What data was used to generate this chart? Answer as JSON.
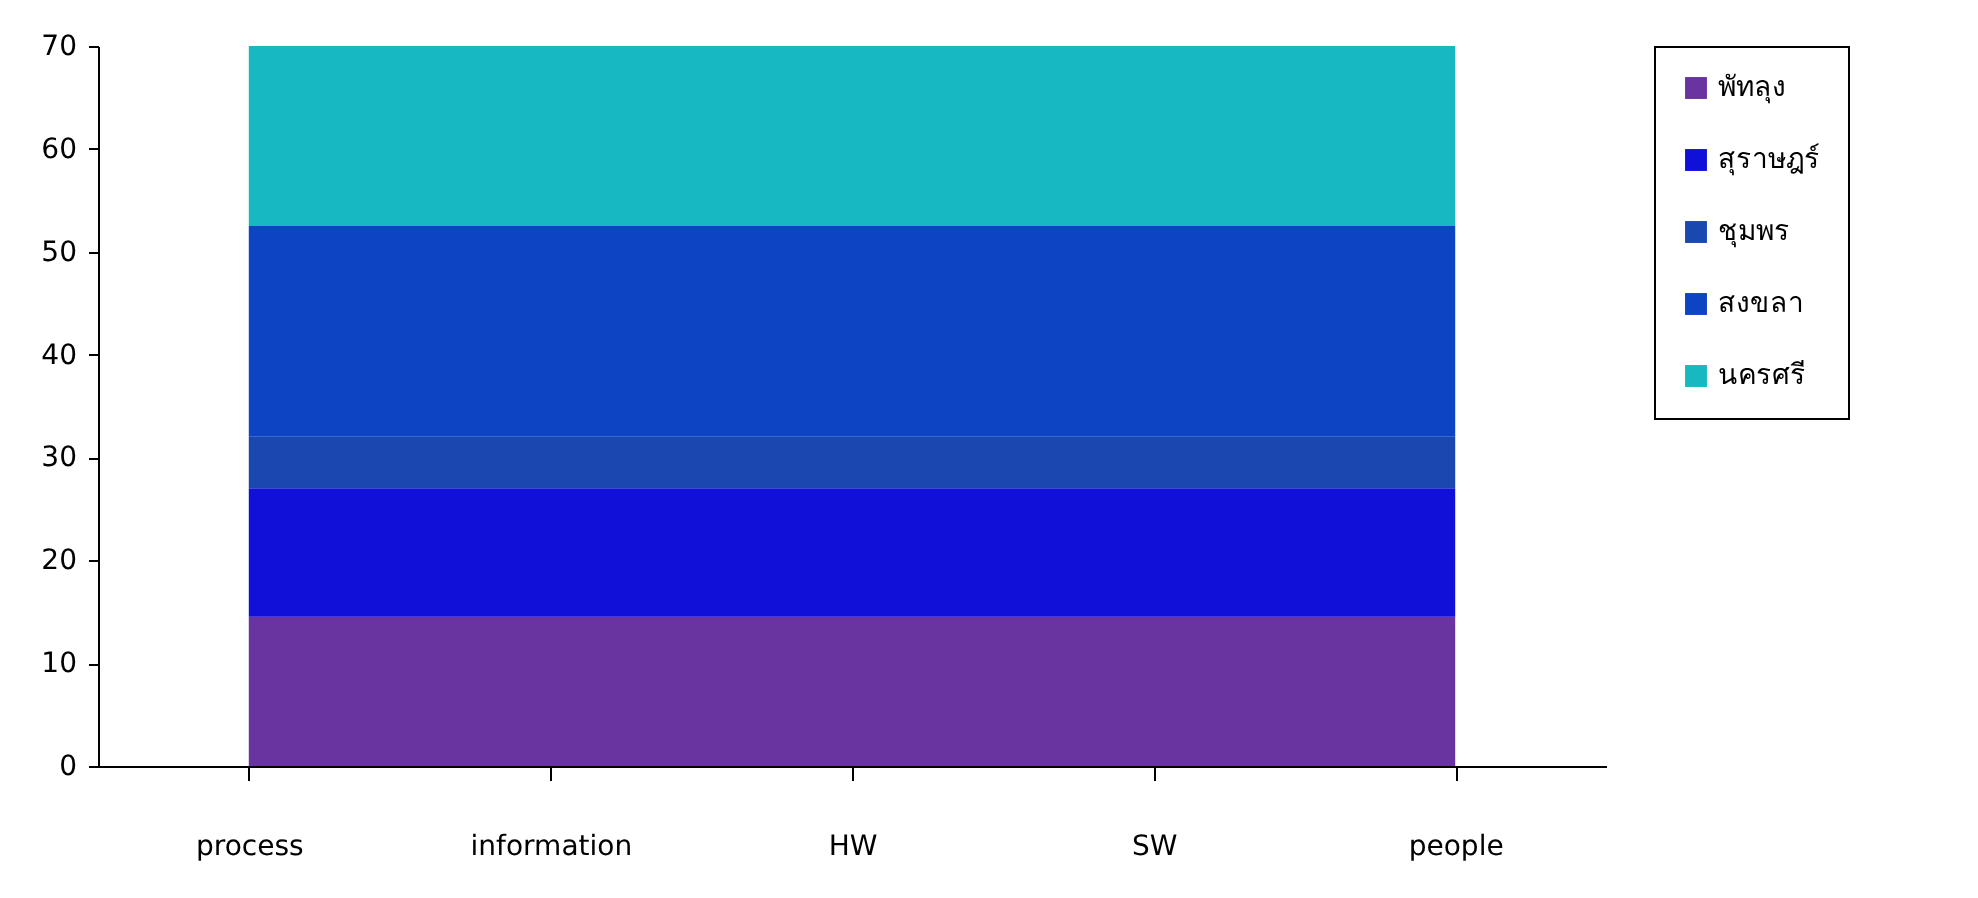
{
  "chart_data": {
    "type": "area",
    "stacked": true,
    "categories": [
      "process",
      "information",
      "HW",
      "SW",
      "people"
    ],
    "series": [
      {
        "name": "พัทลุง",
        "color": "#6a34a0",
        "values": [
          14.5,
          14.5,
          14.5,
          14.5,
          14.5
        ]
      },
      {
        "name": "สุราษฎร์",
        "color": "#1010d8",
        "values": [
          12.5,
          12.5,
          12.5,
          12.5,
          12.5
        ]
      },
      {
        "name": "ชุมพร",
        "color": "#1848b0",
        "values": [
          5,
          5,
          5,
          5,
          5
        ]
      },
      {
        "name": "สงขลา",
        "color": "#0c44c4",
        "values": [
          20.5,
          20.5,
          20.5,
          20.5,
          20.5
        ]
      },
      {
        "name": "นครศรี",
        "color": "#18b8c0",
        "values": [
          17.5,
          17.5,
          17.5,
          17.5,
          17.5
        ]
      }
    ],
    "ylim": [
      0,
      70
    ],
    "yticks": [
      0,
      10,
      20,
      30,
      40,
      50,
      60,
      70
    ],
    "grid": false,
    "legend": "right"
  }
}
